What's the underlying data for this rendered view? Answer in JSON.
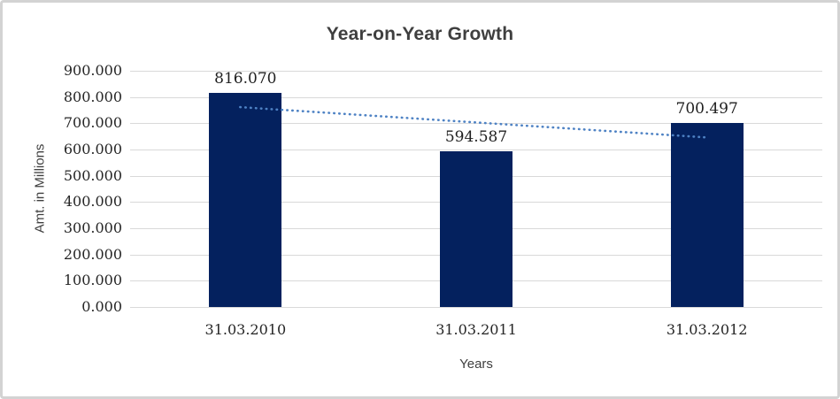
{
  "chart_data": {
    "type": "bar",
    "title": "Year-on-Year Growth",
    "xlabel": "Years",
    "ylabel": "Amt. in Millions",
    "categories": [
      "31.03.2010",
      "31.03.2011",
      "31.03.2012"
    ],
    "values": [
      816.07,
      594.587,
      700.497
    ],
    "data_labels": [
      "816.070",
      "594.587",
      "700.497"
    ],
    "ylim": [
      0,
      900
    ],
    "ytick_step": 100,
    "ytick_labels": [
      "900.000",
      "800.000",
      "700.000",
      "600.000",
      "500.000",
      "400.000",
      "300.000",
      "200.000",
      "100.000",
      "0.000"
    ],
    "grid": true,
    "legend": "none",
    "trendline": {
      "type": "linear",
      "style": "dotted",
      "start_value": 761.5,
      "end_value": 645.9
    },
    "colors": {
      "bar": "#04215e",
      "gridline": "#d9d9d9",
      "tick_label": "#262626",
      "title": "#3f3f3f",
      "axis_title": "#3f3f3f",
      "trendline": "#4e82c4",
      "frame_border": "#d3d3d3",
      "background": "#ffffff"
    }
  }
}
